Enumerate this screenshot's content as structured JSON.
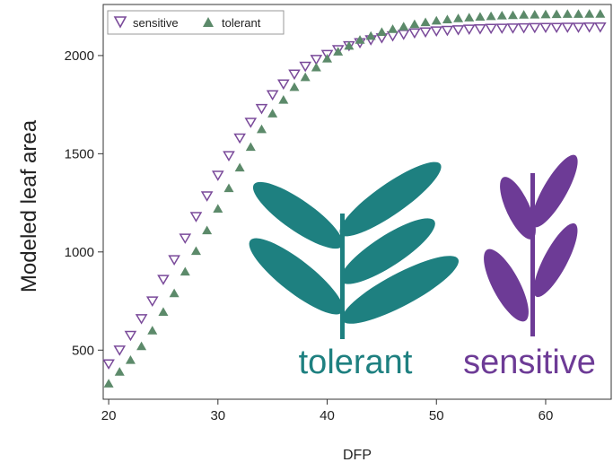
{
  "chart_data": {
    "type": "scatter",
    "xlabel": "DFP",
    "ylabel": "Modeled leaf area",
    "xlim": [
      19.5,
      66
    ],
    "ylim": [
      250,
      2260
    ],
    "x_ticks": [
      20,
      30,
      40,
      50,
      60
    ],
    "y_ticks": [
      500,
      1000,
      1500,
      2000
    ],
    "grid": false,
    "legend_position": "top-left",
    "series": [
      {
        "name": "sensitive",
        "marker": "open-triangle-down",
        "color": "#7a4a9a",
        "x": [
          20,
          21,
          22,
          23,
          24,
          25,
          26,
          27,
          28,
          29,
          30,
          31,
          32,
          33,
          34,
          35,
          36,
          37,
          38,
          39,
          40,
          41,
          42,
          43,
          44,
          45,
          46,
          47,
          48,
          49,
          50,
          51,
          52,
          53,
          54,
          55,
          56,
          57,
          58,
          59,
          60,
          61,
          62,
          63,
          64,
          65
        ],
        "y": [
          430,
          500,
          575,
          660,
          750,
          860,
          960,
          1070,
          1180,
          1285,
          1390,
          1490,
          1580,
          1660,
          1730,
          1800,
          1855,
          1905,
          1945,
          1980,
          2005,
          2030,
          2050,
          2065,
          2080,
          2090,
          2100,
          2108,
          2115,
          2120,
          2125,
          2128,
          2131,
          2134,
          2136,
          2138,
          2139,
          2140,
          2141,
          2142,
          2143,
          2143,
          2144,
          2144,
          2145,
          2145
        ]
      },
      {
        "name": "tolerant",
        "marker": "filled-triangle-up",
        "color": "#5c8a6a",
        "x": [
          20,
          21,
          22,
          23,
          24,
          25,
          26,
          27,
          28,
          29,
          30,
          31,
          32,
          33,
          34,
          35,
          36,
          37,
          38,
          39,
          40,
          41,
          42,
          43,
          44,
          45,
          46,
          47,
          48,
          49,
          50,
          51,
          52,
          53,
          54,
          55,
          56,
          57,
          58,
          59,
          60,
          61,
          62,
          63,
          64,
          65
        ],
        "y": [
          330,
          390,
          450,
          520,
          600,
          695,
          790,
          900,
          1005,
          1110,
          1220,
          1325,
          1430,
          1535,
          1625,
          1705,
          1775,
          1840,
          1890,
          1940,
          1985,
          2020,
          2050,
          2080,
          2100,
          2120,
          2135,
          2148,
          2160,
          2170,
          2178,
          2184,
          2190,
          2194,
          2198,
          2201,
          2204,
          2206,
          2208,
          2209,
          2210,
          2211,
          2212,
          2212,
          2213,
          2213
        ]
      }
    ]
  },
  "annotations": {
    "tolerant_label": "tolerant",
    "sensitive_label": "sensitive",
    "tolerant_color": "#1e8080",
    "sensitive_color": "#6d3b96"
  }
}
